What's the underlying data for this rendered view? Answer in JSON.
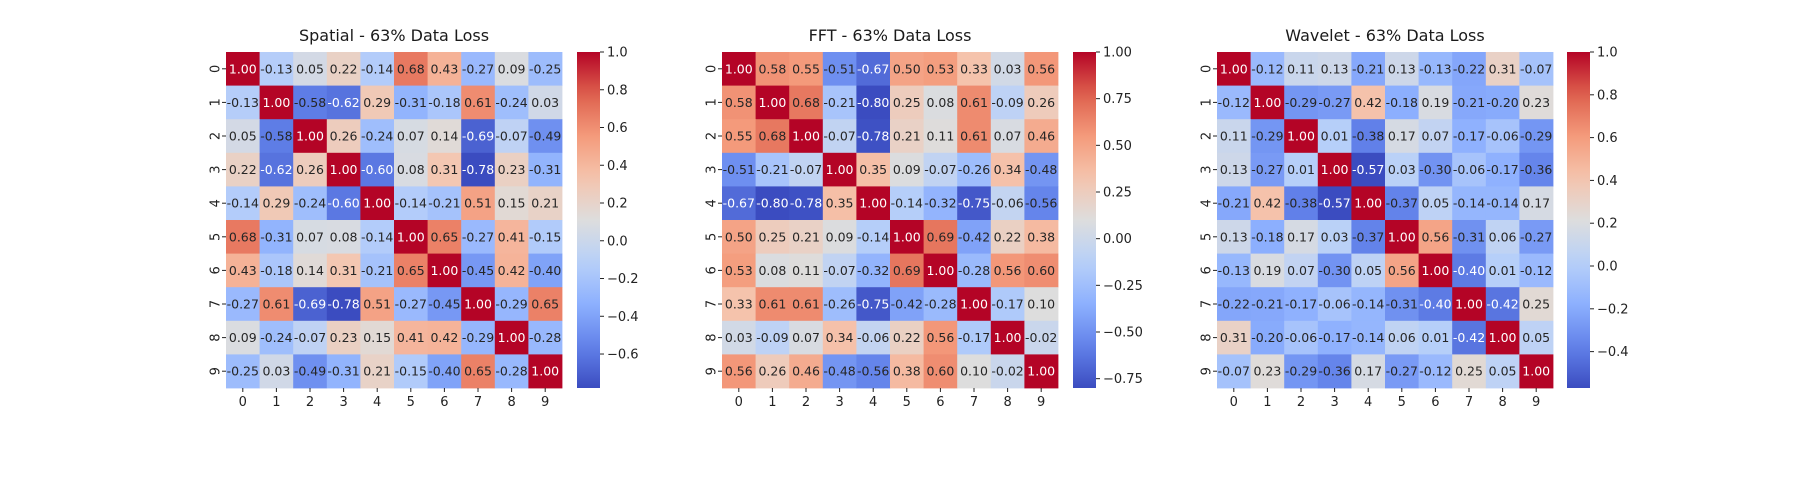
{
  "chart_data": [
    {
      "type": "heatmap",
      "title": "Spatial - 63% Data Loss",
      "x_labels": [
        "0",
        "1",
        "2",
        "3",
        "4",
        "5",
        "6",
        "7",
        "8",
        "9"
      ],
      "y_labels": [
        "0",
        "1",
        "2",
        "3",
        "4",
        "5",
        "6",
        "7",
        "8",
        "9"
      ],
      "matrix": [
        [
          1.0,
          -0.13,
          0.05,
          0.22,
          -0.14,
          0.68,
          0.43,
          -0.27,
          0.09,
          -0.25
        ],
        [
          -0.13,
          1.0,
          -0.58,
          -0.62,
          0.29,
          -0.31,
          -0.18,
          0.61,
          -0.24,
          0.03
        ],
        [
          0.05,
          -0.58,
          1.0,
          0.26,
          -0.24,
          0.07,
          0.14,
          -0.69,
          -0.07,
          -0.49
        ],
        [
          0.22,
          -0.62,
          0.26,
          1.0,
          -0.6,
          0.08,
          0.31,
          -0.78,
          0.23,
          -0.31
        ],
        [
          -0.14,
          0.29,
          -0.24,
          -0.6,
          1.0,
          -0.14,
          -0.21,
          0.51,
          0.15,
          0.21
        ],
        [
          0.68,
          -0.31,
          0.07,
          0.08,
          -0.14,
          1.0,
          0.65,
          -0.27,
          0.41,
          -0.15
        ],
        [
          0.43,
          -0.18,
          0.14,
          0.31,
          -0.21,
          0.65,
          1.0,
          -0.45,
          0.42,
          -0.4
        ],
        [
          -0.27,
          0.61,
          -0.69,
          -0.78,
          0.51,
          -0.27,
          -0.45,
          1.0,
          -0.29,
          0.65
        ],
        [
          0.09,
          -0.24,
          -0.07,
          0.23,
          0.15,
          0.41,
          0.42,
          -0.29,
          1.0,
          -0.28
        ],
        [
          -0.25,
          0.03,
          -0.49,
          -0.31,
          0.21,
          -0.15,
          -0.4,
          0.65,
          -0.28,
          1.0
        ]
      ],
      "colormap": "coolwarm",
      "vmin": -0.78,
      "vmax": 1.0,
      "colorbar_ticks": [
        1.0,
        0.8,
        0.6,
        0.4,
        0.2,
        0.0,
        -0.2,
        -0.4,
        -0.6
      ],
      "colorbar_tick_labels": [
        "1.0",
        "0.8",
        "0.6",
        "0.4",
        "0.2",
        "0.0",
        "−0.2",
        "−0.4",
        "−0.6"
      ]
    },
    {
      "type": "heatmap",
      "title": "FFT - 63% Data Loss",
      "x_labels": [
        "0",
        "1",
        "2",
        "3",
        "4",
        "5",
        "6",
        "7",
        "8",
        "9"
      ],
      "y_labels": [
        "0",
        "1",
        "2",
        "3",
        "4",
        "5",
        "6",
        "7",
        "8",
        "9"
      ],
      "matrix": [
        [
          1.0,
          0.58,
          0.55,
          -0.51,
          -0.67,
          0.5,
          0.53,
          0.33,
          0.03,
          0.56
        ],
        [
          0.58,
          1.0,
          0.68,
          -0.21,
          -0.8,
          0.25,
          0.08,
          0.61,
          -0.09,
          0.26
        ],
        [
          0.55,
          0.68,
          1.0,
          -0.07,
          -0.78,
          0.21,
          0.11,
          0.61,
          0.07,
          0.46
        ],
        [
          -0.51,
          -0.21,
          -0.07,
          1.0,
          0.35,
          0.09,
          -0.07,
          -0.26,
          0.34,
          -0.48
        ],
        [
          -0.67,
          -0.8,
          -0.78,
          0.35,
          1.0,
          -0.14,
          -0.32,
          -0.75,
          -0.06,
          -0.56
        ],
        [
          0.5,
          0.25,
          0.21,
          0.09,
          -0.14,
          1.0,
          0.69,
          -0.42,
          0.22,
          0.38
        ],
        [
          0.53,
          0.08,
          0.11,
          -0.07,
          -0.32,
          0.69,
          1.0,
          -0.28,
          0.56,
          0.6
        ],
        [
          0.33,
          0.61,
          0.61,
          -0.26,
          -0.75,
          -0.42,
          -0.28,
          1.0,
          -0.17,
          0.1
        ],
        [
          0.03,
          -0.09,
          0.07,
          0.34,
          -0.06,
          0.22,
          0.56,
          -0.17,
          1.0,
          -0.02
        ],
        [
          0.56,
          0.26,
          0.46,
          -0.48,
          -0.56,
          0.38,
          0.6,
          0.1,
          -0.02,
          1.0
        ]
      ],
      "colormap": "coolwarm",
      "vmin": -0.8,
      "vmax": 1.0,
      "colorbar_ticks": [
        1.0,
        0.75,
        0.5,
        0.25,
        0.0,
        -0.25,
        -0.5,
        -0.75
      ],
      "colorbar_tick_labels": [
        "1.00",
        "0.75",
        "0.50",
        "0.25",
        "0.00",
        "−0.25",
        "−0.50",
        "−0.75"
      ]
    },
    {
      "type": "heatmap",
      "title": "Wavelet - 63% Data Loss",
      "x_labels": [
        "0",
        "1",
        "2",
        "3",
        "4",
        "5",
        "6",
        "7",
        "8",
        "9"
      ],
      "y_labels": [
        "0",
        "1",
        "2",
        "3",
        "4",
        "5",
        "6",
        "7",
        "8",
        "9"
      ],
      "matrix": [
        [
          1.0,
          -0.12,
          0.11,
          0.13,
          -0.21,
          0.13,
          -0.13,
          -0.22,
          0.31,
          -0.07
        ],
        [
          -0.12,
          1.0,
          -0.29,
          -0.27,
          0.42,
          -0.18,
          0.19,
          -0.21,
          -0.2,
          0.23
        ],
        [
          0.11,
          -0.29,
          1.0,
          0.01,
          -0.38,
          0.17,
          0.07,
          -0.17,
          -0.06,
          -0.29
        ],
        [
          0.13,
          -0.27,
          0.01,
          1.0,
          -0.57,
          0.03,
          -0.3,
          -0.06,
          -0.17,
          -0.36
        ],
        [
          -0.21,
          0.42,
          -0.38,
          -0.57,
          1.0,
          -0.37,
          0.05,
          -0.14,
          -0.14,
          0.17
        ],
        [
          0.13,
          -0.18,
          0.17,
          0.03,
          -0.37,
          1.0,
          0.56,
          -0.31,
          0.06,
          -0.27
        ],
        [
          -0.13,
          0.19,
          0.07,
          -0.3,
          0.05,
          0.56,
          1.0,
          -0.4,
          0.01,
          -0.12
        ],
        [
          -0.22,
          -0.21,
          -0.17,
          -0.06,
          -0.14,
          -0.31,
          -0.4,
          1.0,
          -0.42,
          0.25
        ],
        [
          0.31,
          -0.2,
          -0.06,
          -0.17,
          -0.14,
          0.06,
          0.01,
          -0.42,
          1.0,
          0.05
        ],
        [
          -0.07,
          0.23,
          -0.29,
          -0.36,
          0.17,
          -0.27,
          -0.12,
          0.25,
          0.05,
          1.0
        ]
      ],
      "colormap": "coolwarm",
      "vmin": -0.57,
      "vmax": 1.0,
      "colorbar_ticks": [
        1.0,
        0.8,
        0.6,
        0.4,
        0.2,
        0.0,
        -0.2,
        -0.4
      ],
      "colorbar_tick_labels": [
        "1.0",
        "0.8",
        "0.6",
        "0.4",
        "0.2",
        "0.0",
        "−0.2",
        "−0.4"
      ]
    }
  ]
}
